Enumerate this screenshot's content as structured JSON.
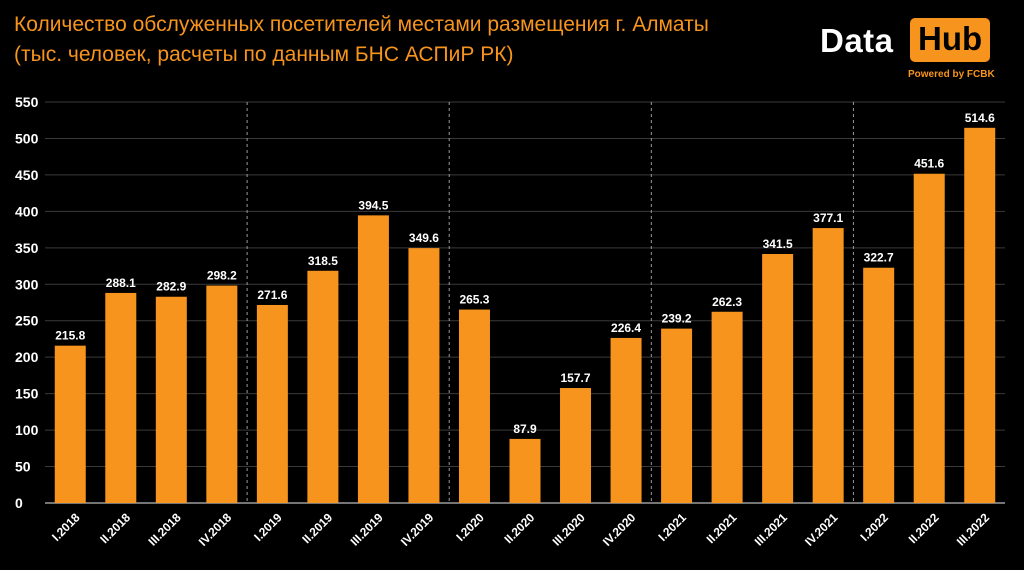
{
  "header": {
    "title_line1": "Количество обслуженных посетителей местами размещения г. Алматы",
    "title_line2": "(тыс. человек, расчеты по данным БНС АСПиР РК)"
  },
  "logo": {
    "data_text": "Data",
    "hub_text": "Hub",
    "powered_text": "Powered by FCBK"
  },
  "colors": {
    "bar": "#f7941d",
    "title": "#f7941d",
    "text": "#ffffff",
    "background": "#000000"
  },
  "chart_data": {
    "type": "bar",
    "title": "Количество обслуженных посетителей местами размещения г. Алматы",
    "ylim": [
      0,
      550
    ],
    "yticks": [
      0,
      50,
      100,
      150,
      200,
      250,
      300,
      350,
      400,
      450,
      500,
      550
    ],
    "grid": true,
    "categories": [
      "I.2018",
      "II.2018",
      "III.2018",
      "IV.2018",
      "I.2019",
      "II.2019",
      "III.2019",
      "IV.2019",
      "I.2020",
      "II.2020",
      "III.2020",
      "IV.2020",
      "I.2021",
      "II.2021",
      "III.2021",
      "IV.2021",
      "I.2022",
      "II.2022",
      "III.2022"
    ],
    "values": [
      215.8,
      288.1,
      282.9,
      298.2,
      271.6,
      318.5,
      394.5,
      349.6,
      265.3,
      87.9,
      157.7,
      226.4,
      239.2,
      262.3,
      341.5,
      377.1,
      322.7,
      451.6,
      514.6
    ],
    "value_labels": [
      "215.8",
      "288.1",
      "282.9",
      "298.2",
      "271.6",
      "318.5",
      "394.5",
      "349.6",
      "265.3",
      "87.9",
      "157.7",
      "226.4",
      "239.2",
      "262.3",
      "341.5",
      "377.1",
      "322.7",
      "451.6",
      "514.6"
    ],
    "year_separators_after": [
      3,
      7,
      11,
      15
    ]
  }
}
